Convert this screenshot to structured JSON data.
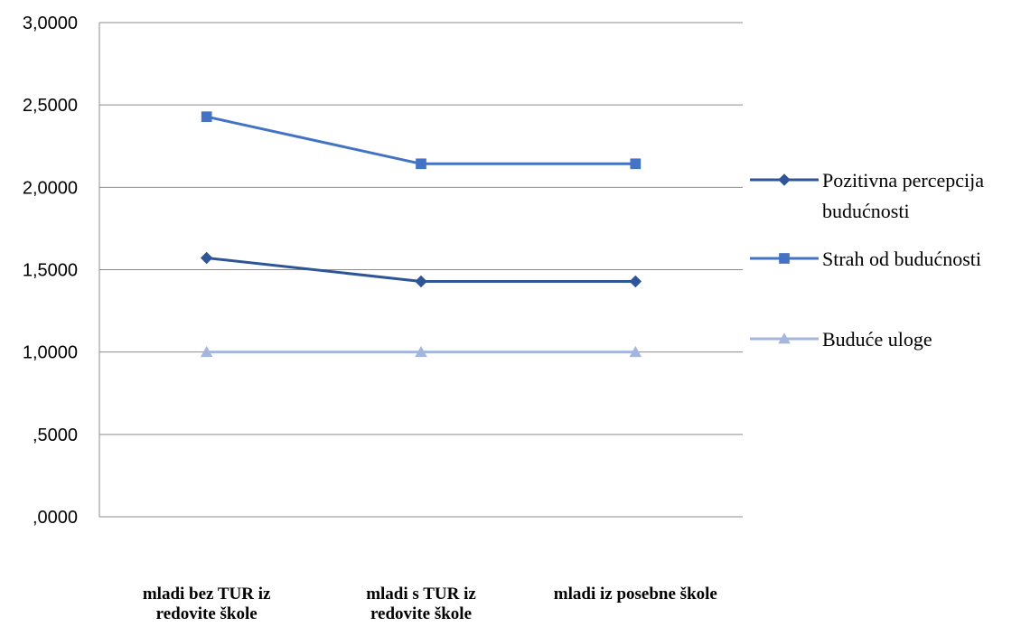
{
  "chart_data": {
    "type": "line",
    "categories": [
      [
        "mladi bez TUR iz",
        "redovite škole"
      ],
      [
        "mladi s TUR iz",
        "redovite škole"
      ],
      [
        "mladi iz posebne škole"
      ]
    ],
    "y_tick_labels": [
      "3,0000",
      "2,5000",
      "2,0000",
      "1,5000",
      "1,0000",
      ",5000",
      ",0000"
    ],
    "y_ticks": [
      3.0,
      2.5,
      2.0,
      1.5,
      1.0,
      0.5,
      0.0
    ],
    "ylim": [
      0,
      3
    ],
    "grid": true,
    "legend_position": "right",
    "series": [
      {
        "name": "Pozitivna percepcija budućnosti",
        "legend_lines": [
          "Pozitivna percepcija",
          "budućnosti"
        ],
        "values": [
          1.5714,
          1.4286,
          1.4286
        ],
        "color": "#2E5597",
        "marker": "diamond"
      },
      {
        "name": "Strah od budućnosti",
        "legend_lines": [
          "Strah od budućnosti"
        ],
        "values": [
          2.4286,
          2.1429,
          2.1429
        ],
        "color": "#4472C4",
        "marker": "square"
      },
      {
        "name": "Buduće uloge",
        "legend_lines": [
          "Buduće uloge"
        ],
        "values": [
          1.0,
          1.0,
          1.0
        ],
        "color": "#A5B6DE",
        "marker": "triangle"
      }
    ]
  }
}
